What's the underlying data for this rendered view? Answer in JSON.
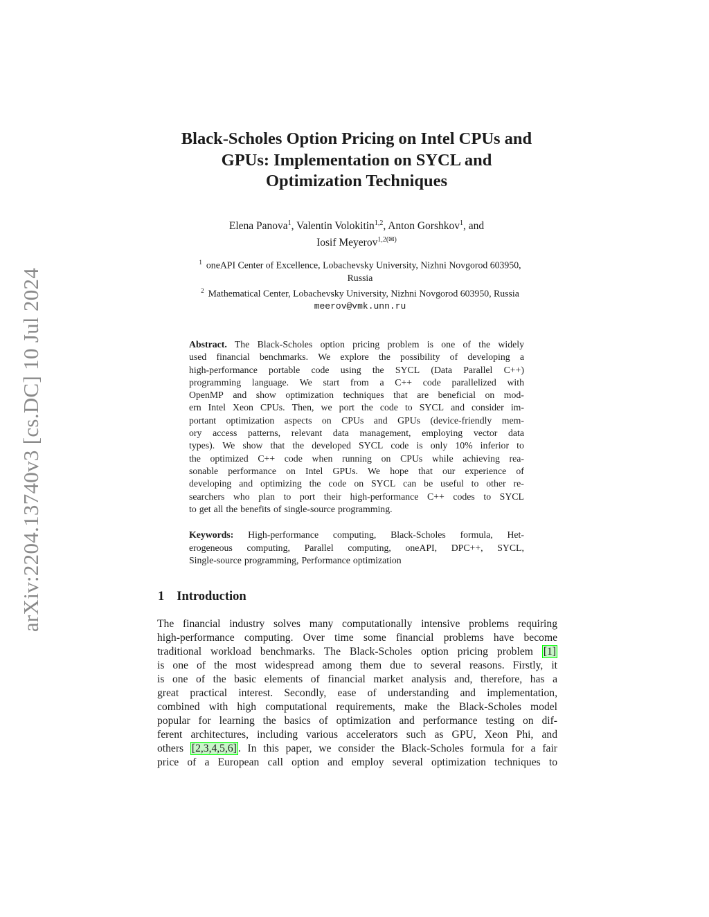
{
  "arxiv_id": "arXiv:2204.13740v3  [cs.DC]  10 Jul 2024",
  "title_lines": [
    "Black-Scholes Option Pricing on Intel CPUs and",
    "GPUs: Implementation on SYCL and",
    "Optimization Techniques"
  ],
  "authors": {
    "a1": "Elena Panova",
    "a1_sup": "1",
    "a2": "Valentin Volokitin",
    "a2_sup": "1,2",
    "a3": "Anton Gorshkov",
    "a3_sup": "1",
    "and": ", and",
    "a4": "Iosif Meyerov",
    "a4_sup": "1,2(✉)"
  },
  "affiliations": {
    "aff1_num": "1",
    "aff1_line1": "oneAPI Center of Excellence, Lobachevsky University, Nizhni Novgorod 603950,",
    "aff1_line2": "Russia",
    "aff2_num": "2",
    "aff2": "Mathematical Center, Lobachevsky University, Nizhni Novgorod 603950, Russia",
    "email": "meerov@vmk.unn.ru"
  },
  "abstract": {
    "label": "Abstract.",
    "lines": [
      "The Black-Scholes option pricing problem is one of the widely",
      "used financial benchmarks. We explore the possibility of developing a",
      "high-performance portable code using the SYCL (Data Parallel C++)",
      "programming language. We start from a C++ code parallelized with",
      "OpenMP and show optimization techniques that are beneficial on mod-",
      "ern Intel Xeon CPUs. Then, we port the code to SYCL and consider im-",
      "portant optimization aspects on CPUs and GPUs (device-friendly mem-",
      "ory access patterns, relevant data management, employing vector data",
      "types). We show that the developed SYCL code is only 10% inferior to",
      "the optimized C++ code when running on CPUs while achieving rea-",
      "sonable performance on Intel GPUs. We hope that our experience of",
      "developing and optimizing the code on SYCL can be useful to other re-",
      "searchers who plan to port their high-performance C++ codes to SYCL",
      "to get all the benefits of single-source programming."
    ]
  },
  "keywords": {
    "label": "Keywords:",
    "lines": [
      "High-performance computing, Black-Scholes formula, Het-",
      "erogeneous computing, Parallel computing, oneAPI, DPC++, SYCL,",
      "Single-source programming, Performance optimization"
    ]
  },
  "section": {
    "number": "1",
    "title": "Introduction"
  },
  "body_lines": [
    {
      "text": "The financial industry solves many computationally intensive problems requiring"
    },
    {
      "text": "high-performance computing. Over time some financial problems have become"
    },
    {
      "text": "traditional workload benchmarks. The Black-Scholes option pricing problem ",
      "cite": "[1]",
      "after": ""
    },
    {
      "text": "is one of the most widespread among them due to several reasons. Firstly, it"
    },
    {
      "text": "is one of the basic elements of financial market analysis and, therefore, has a"
    },
    {
      "text": "great practical interest. Secondly, ease of understanding and implementation,"
    },
    {
      "text": "combined with high computational requirements, make the Black-Scholes model"
    },
    {
      "text": "popular for learning the basics of optimization and performance testing on dif-"
    },
    {
      "text": "ferent architectures, including various accelerators such as GPU, Xeon Phi, and"
    },
    {
      "text": "others ",
      "cite": "[2,3,4,5,6]",
      "after": ". In this paper, we consider the Black-Scholes formula for a fair"
    },
    {
      "text": "price of a European call option and employ several optimization techniques to"
    }
  ],
  "colors": {
    "citation_box": "#00ff00",
    "side_text": "#8a8a8a"
  }
}
